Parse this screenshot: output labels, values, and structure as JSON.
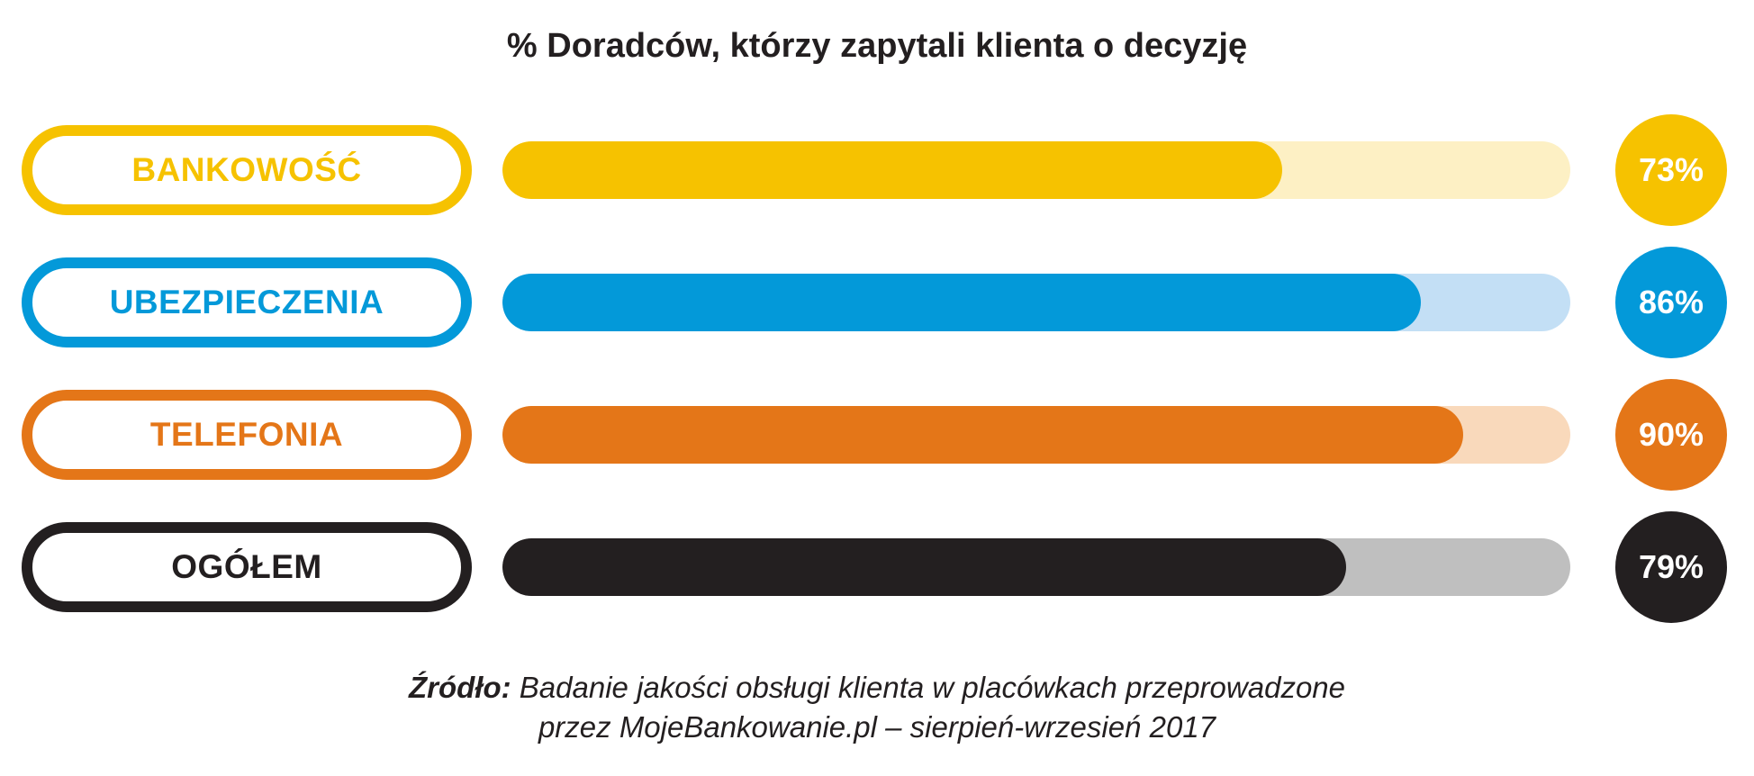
{
  "chart_data": {
    "type": "bar",
    "orientation": "horizontal",
    "title": "% Doradców, którzy zapytali klienta o decyzję",
    "categories": [
      "BANKOWOŚĆ",
      "UBEZPIECZENIA",
      "TELEFONIA",
      "OGÓŁEM"
    ],
    "values": [
      73,
      86,
      90,
      79
    ],
    "value_labels": [
      "73%",
      "86%",
      "90%",
      "79%"
    ],
    "xlim": [
      0,
      100
    ],
    "grid": false,
    "colors": [
      "#f6c200",
      "#0399d9",
      "#e47618",
      "#231f20"
    ],
    "track_colors": [
      "#fdf0c4",
      "#c3dff5",
      "#f9d9bb",
      "#bfbfbf"
    ]
  },
  "source": {
    "lead": "Źródło:",
    "line1": "Badanie jakości obsługi klienta w placówkach przeprowadzone",
    "line2": "przez MojeBankowanie.pl – sierpień-wrzesień 2017"
  }
}
